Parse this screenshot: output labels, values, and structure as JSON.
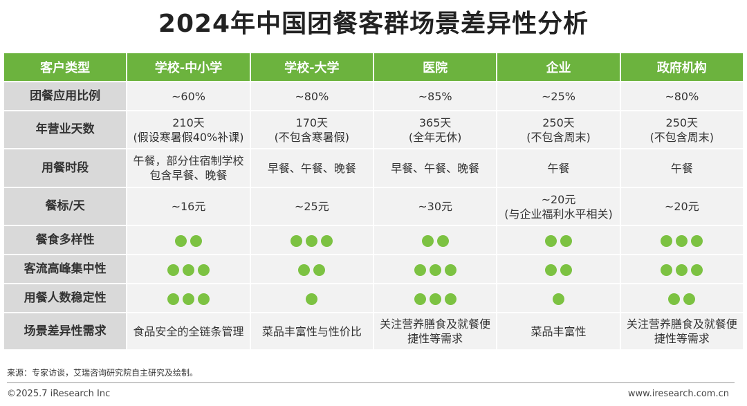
{
  "title": "2024年中国团餐客群场景差异性分析",
  "header": {
    "first": "客户类型",
    "columns": [
      "学校-中小学",
      "学校-大学",
      "医院",
      "企业",
      "政府机构"
    ]
  },
  "rows": [
    {
      "label": "团餐应用比例",
      "cells": [
        [
          "~60%"
        ],
        [
          "~80%"
        ],
        [
          "~85%"
        ],
        [
          "~25%"
        ],
        [
          "~80%"
        ]
      ]
    },
    {
      "label": "年营业天数",
      "cells": [
        [
          "210天",
          "(假设寒暑假40%补课)"
        ],
        [
          "170天",
          "(不包含寒暑假)"
        ],
        [
          "365天",
          "(全年无休)"
        ],
        [
          "250天",
          "(不包含周末)"
        ],
        [
          "250天",
          "(不包含周末)"
        ]
      ]
    },
    {
      "label": "用餐时段",
      "cells": [
        [
          "午餐，部分住宿制学校",
          "包含早餐、晚餐"
        ],
        [
          "早餐、午餐、晚餐"
        ],
        [
          "早餐、午餐、晚餐"
        ],
        [
          "午餐"
        ],
        [
          "午餐"
        ]
      ]
    },
    {
      "label": "餐标/天",
      "cells": [
        [
          "~16元"
        ],
        [
          "~25元"
        ],
        [
          "~30元"
        ],
        [
          "~20元",
          "(与企业福利水平相关)"
        ],
        [
          "~20元"
        ]
      ]
    }
  ],
  "rating_rows": [
    {
      "label": "餐食多样性",
      "levels": [
        2,
        3,
        2,
        2,
        3
      ]
    },
    {
      "label": "客流高峰集中性",
      "levels": [
        3,
        2,
        3,
        2,
        3
      ]
    },
    {
      "label": "用餐人数稳定性",
      "levels": [
        3,
        1,
        3,
        1,
        2
      ]
    }
  ],
  "last_row": {
    "label": "场景差异性需求",
    "cells": [
      [
        "食品安全的全链条管理"
      ],
      [
        "菜品丰富性与性价比"
      ],
      [
        "关注营养膳食及就餐便",
        "捷性等需求"
      ],
      [
        "菜品丰富性"
      ],
      [
        "关注营养膳食及就餐便",
        "捷性等需求"
      ]
    ]
  },
  "footer": {
    "source": "来源：专家访谈，艾瑞咨询研究院自主研究及绘制。",
    "copyright": "©2025.7 iResearch Inc",
    "site": "www.iresearch.com.cn"
  },
  "colors": {
    "header_green": "#6cb33e",
    "dot_green": "#7cc242",
    "row_head_gray": "#d9d9d9",
    "cell_gray": "#f2f2f2"
  }
}
